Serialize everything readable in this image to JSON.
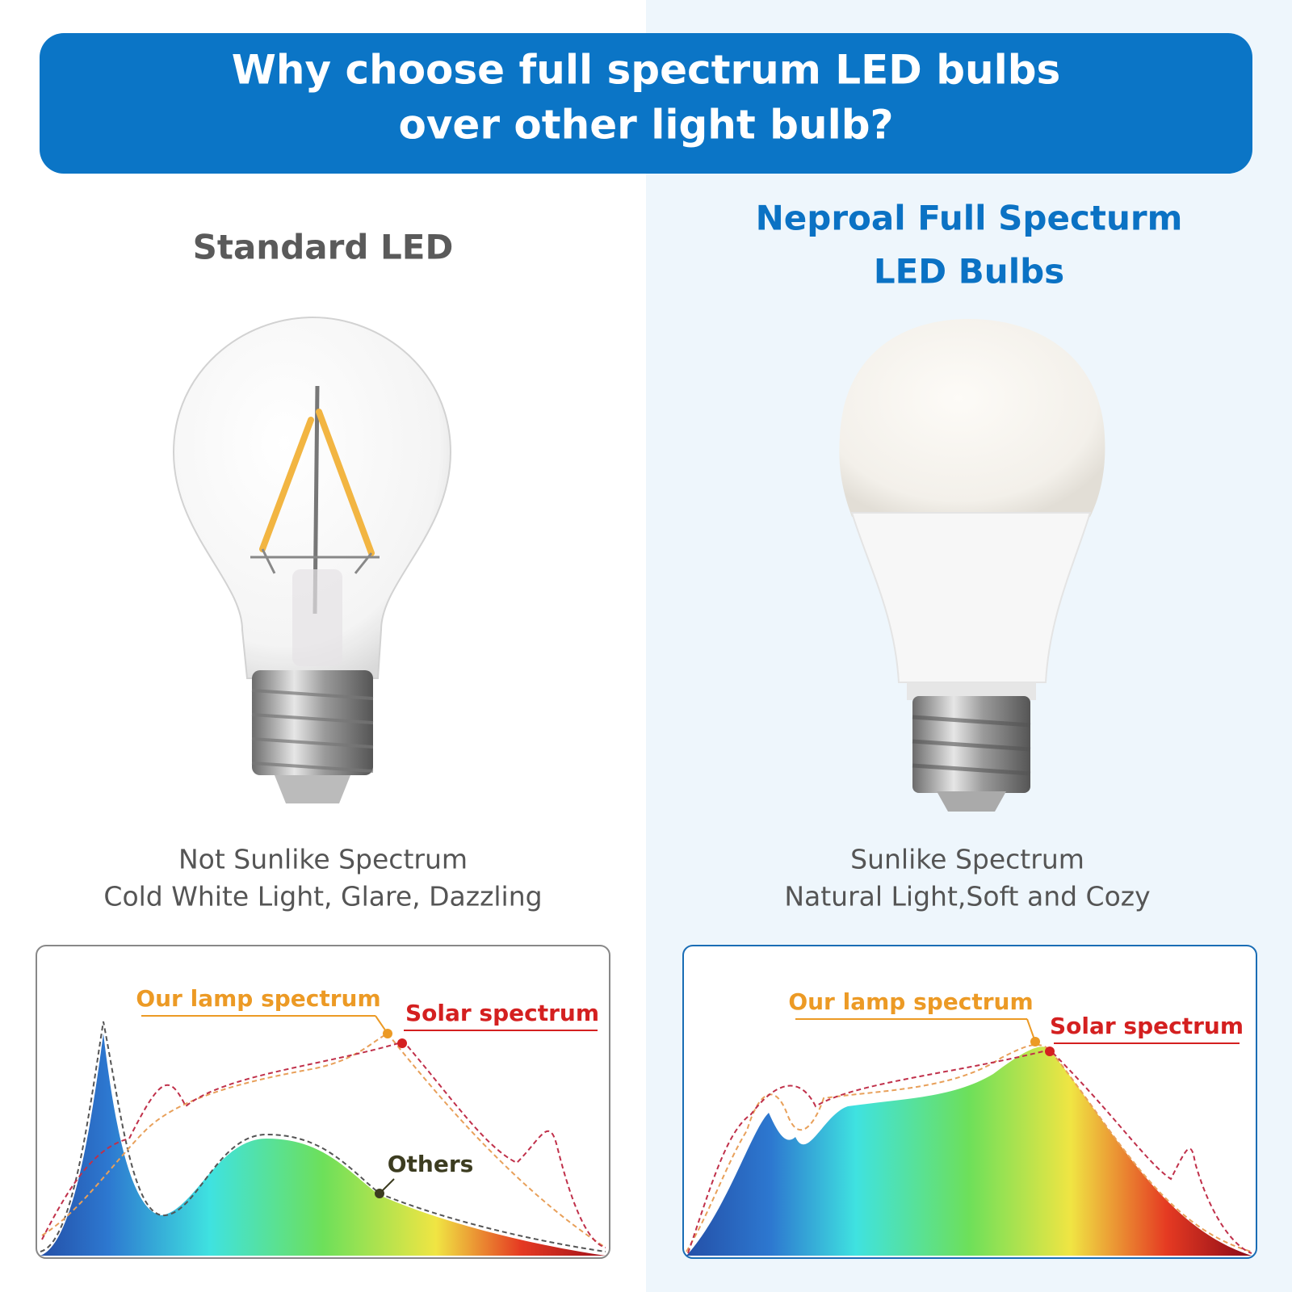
{
  "header": {
    "title": [
      "Why choose full spectrum LED bulbs",
      "over other light bulb?"
    ]
  },
  "left": {
    "heading": [
      "Standard LED"
    ],
    "caption": [
      "Not Sunlike Spectrum",
      "Cold White Light, Glare, Dazzling"
    ],
    "spectrum": {
      "labels": [
        "Our lamp spectrum",
        "Solar spectrum",
        "Others"
      ]
    }
  },
  "right": {
    "heading": [
      "Neproal Full Specturm",
      "LED Bulbs"
    ],
    "caption": [
      "Sunlike Spectrum",
      "Natural Light,Soft and Cozy"
    ],
    "spectrum": {
      "labels": [
        "Our lamp spectrum",
        "Solar spectrum"
      ]
    }
  }
}
